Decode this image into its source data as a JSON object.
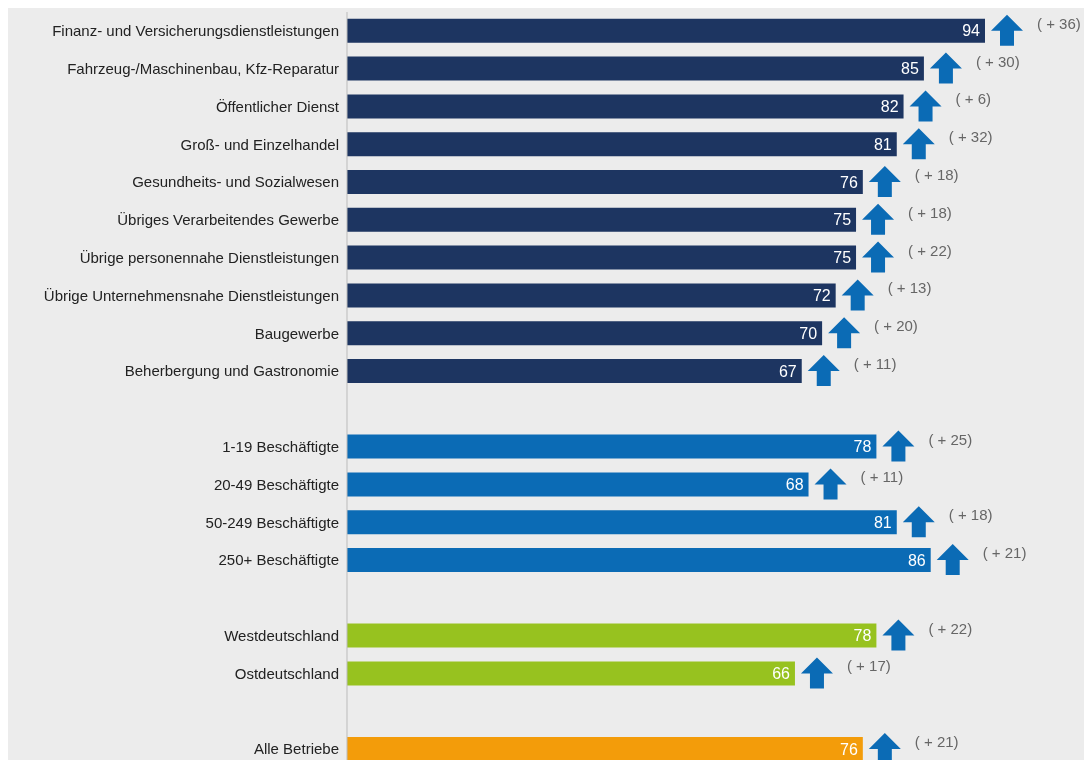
{
  "chart_data": {
    "type": "bar",
    "orientation": "horizontal",
    "data_labels": true,
    "categories": [
      "Finanz- und Versicherungsdienstleistungen",
      "Fahrzeug-/Maschinenbau, Kfz-Reparatur",
      "Öffentlicher Dienst",
      "Groß- und Einzelhandel",
      "Gesundheits- und Sozialwesen",
      "Übriges Verarbeitendes Gewerbe",
      "Übrige personennahe Dienstleistungen",
      "Übrige Unternehmensnahe Dienstleistungen",
      "Baugewerbe",
      "Beherbergung und Gastronomie",
      null,
      "1-19 Beschäftigte",
      "20-49 Beschäftigte",
      "50-249 Beschäftigte",
      "250+ Beschäftigte",
      null,
      "Westdeutschland",
      "Ostdeutschland",
      null,
      "Alle Betriebe"
    ],
    "values": [
      94,
      85,
      82,
      81,
      76,
      75,
      75,
      72,
      70,
      67,
      null,
      78,
      68,
      81,
      86,
      null,
      78,
      66,
      null,
      76
    ],
    "colors": [
      "#1d3561",
      "#1d3561",
      "#1d3561",
      "#1d3561",
      "#1d3561",
      "#1d3561",
      "#1d3561",
      "#1d3561",
      "#1d3561",
      "#1d3561",
      "#1d3561",
      "#0b6bb5",
      "#0b6bb5",
      "#0b6bb5",
      "#0b6bb5",
      "#0b6bb5",
      "#97c21f",
      "#97c21f",
      "#97c21f",
      "#f39c0a"
    ],
    "annotations": [
      "( + 36)",
      "( + 30)",
      "( + 6)",
      "( + 32)",
      "( + 18)",
      "( + 18)",
      "( + 22)",
      "( + 13)",
      "( + 20)",
      "( + 11)",
      "( + 25)",
      "( + 11)",
      "( + 18)",
      "( + 21)",
      "( + 22)",
      "( + 17)",
      "( + 21)"
    ]
  }
}
